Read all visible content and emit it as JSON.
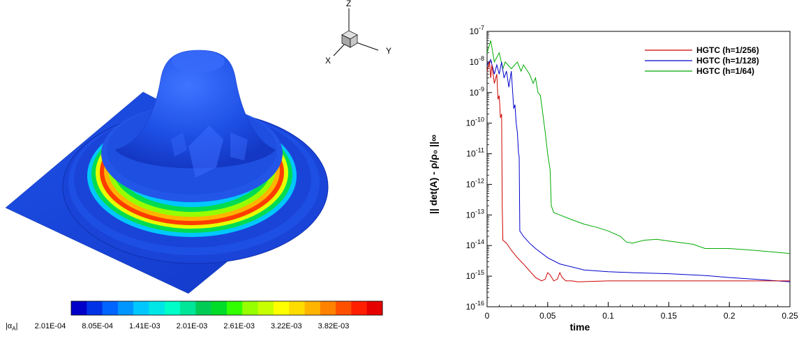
{
  "chart_data": [
    {
      "type": "surface",
      "colorbar": {
        "label_main": "|α",
        "label_sub": "A",
        "label_end": "|",
        "tick_labels": [
          "2.01E-04",
          "8.05E-04",
          "1.41E-03",
          "2.01E-03",
          "2.61E-03",
          "3.22E-03",
          "3.82E-03"
        ],
        "colors": [
          "#0000c8",
          "#0032e6",
          "#0064ff",
          "#0096ff",
          "#00c8ff",
          "#00e6e6",
          "#00ffc8",
          "#00e699",
          "#00cc55",
          "#00dc28",
          "#32ff00",
          "#96ff00",
          "#c8ff00",
          "#ffff00",
          "#ffdc00",
          "#ffb400",
          "#ff8200",
          "#ff5000",
          "#ff1e00",
          "#e60000"
        ]
      },
      "triad": {
        "z": "Z",
        "y": "Y",
        "x": "X"
      }
    },
    {
      "type": "line",
      "xlabel": "time",
      "ylabel": "|| det(A) - ρ/ρ₀ ||∞",
      "xlim": [
        0,
        0.25
      ],
      "ylim": [
        1e-16,
        1e-07
      ],
      "yscale": "log",
      "x_ticks": [
        "0",
        "0.05",
        "0.1",
        "0.15",
        "0.2",
        "0.25"
      ],
      "y_tick_exponents": [
        "-7",
        "-8",
        "-9",
        "-10",
        "-11",
        "-12",
        "-13",
        "-14",
        "-15",
        "-16"
      ],
      "y_tick_base": "10",
      "legend_position": "top-right",
      "series": [
        {
          "name": "HGTC (h=1/256)",
          "color": "#cc0000",
          "points": [
            [
              0.0,
              5e-09
            ],
            [
              0.002,
              1e-08
            ],
            [
              0.003,
              3e-09
            ],
            [
              0.004,
              8e-09
            ],
            [
              0.006,
              2e-09
            ],
            [
              0.008,
              4e-09
            ],
            [
              0.009,
              6e-10
            ],
            [
              0.01,
              8e-10
            ],
            [
              0.011,
              1.5e-10
            ],
            [
              0.012,
              2e-10
            ],
            [
              0.0125,
              2e-13
            ],
            [
              0.013,
              1.5e-14
            ],
            [
              0.016,
              1.2e-14
            ],
            [
              0.02,
              7e-15
            ],
            [
              0.025,
              4e-15
            ],
            [
              0.03,
              2.5e-15
            ],
            [
              0.035,
              1.5e-15
            ],
            [
              0.04,
              9e-16
            ],
            [
              0.045,
              7e-16
            ],
            [
              0.048,
              8e-16
            ],
            [
              0.05,
              1.3e-15
            ],
            [
              0.052,
              1.1e-15
            ],
            [
              0.055,
              7e-16
            ],
            [
              0.058,
              8e-16
            ],
            [
              0.06,
              1.3e-15
            ],
            [
              0.062,
              9e-16
            ],
            [
              0.065,
              7e-16
            ],
            [
              0.07,
              7e-16
            ],
            [
              0.075,
              6.5e-16
            ],
            [
              0.1,
              7e-16
            ],
            [
              0.15,
              7e-16
            ],
            [
              0.2,
              7e-16
            ],
            [
              0.25,
              7e-16
            ]
          ]
        },
        {
          "name": "HGTC (h=1/128)",
          "color": "#0000cc",
          "points": [
            [
              0.0,
              8e-09
            ],
            [
              0.003,
              1.2e-08
            ],
            [
              0.006,
              4e-09
            ],
            [
              0.008,
              8e-09
            ],
            [
              0.01,
              4e-09
            ],
            [
              0.012,
              1e-08
            ],
            [
              0.014,
              3e-09
            ],
            [
              0.016,
              5e-09
            ],
            [
              0.018,
              1.5e-09
            ],
            [
              0.02,
              5e-09
            ],
            [
              0.022,
              3e-10
            ],
            [
              0.023,
              4e-10
            ],
            [
              0.024,
              1e-10
            ],
            [
              0.025,
              5e-11
            ],
            [
              0.026,
              1e-11
            ],
            [
              0.0265,
              8e-12
            ],
            [
              0.027,
              3e-14
            ],
            [
              0.03,
              2e-14
            ],
            [
              0.035,
              1.2e-14
            ],
            [
              0.04,
              8e-15
            ],
            [
              0.05,
              4e-15
            ],
            [
              0.06,
              2.5e-15
            ],
            [
              0.07,
              2e-15
            ],
            [
              0.08,
              1.6e-15
            ],
            [
              0.1,
              1.4e-15
            ],
            [
              0.12,
              1.3e-15
            ],
            [
              0.15,
              1.2e-15
            ],
            [
              0.18,
              1.05e-15
            ],
            [
              0.2,
              9e-16
            ],
            [
              0.22,
              8e-16
            ],
            [
              0.25,
              6.5e-16
            ]
          ]
        },
        {
          "name": "HGTC (h=1/64)",
          "color": "#00aa00",
          "points": [
            [
              0.0,
              2e-08
            ],
            [
              0.003,
              5e-08
            ],
            [
              0.006,
              1e-08
            ],
            [
              0.01,
              2e-08
            ],
            [
              0.013,
              6e-09
            ],
            [
              0.015,
              1e-08
            ],
            [
              0.02,
              6e-09
            ],
            [
              0.025,
              1e-08
            ],
            [
              0.028,
              5e-09
            ],
            [
              0.03,
              8e-09
            ],
            [
              0.035,
              4e-09
            ],
            [
              0.038,
              2e-09
            ],
            [
              0.04,
              3e-09
            ],
            [
              0.042,
              1e-09
            ],
            [
              0.044,
              8e-10
            ],
            [
              0.046,
              2e-10
            ],
            [
              0.048,
              5e-11
            ],
            [
              0.05,
              1e-11
            ],
            [
              0.052,
              3e-12
            ],
            [
              0.053,
              2e-13
            ],
            [
              0.055,
              1.2e-13
            ],
            [
              0.06,
              1e-13
            ],
            [
              0.07,
              7e-14
            ],
            [
              0.08,
              5e-14
            ],
            [
              0.09,
              4e-14
            ],
            [
              0.1,
              3e-14
            ],
            [
              0.11,
              2e-14
            ],
            [
              0.115,
              1.3e-14
            ],
            [
              0.12,
              1.2e-14
            ],
            [
              0.13,
              1.5e-14
            ],
            [
              0.14,
              1.6e-14
            ],
            [
              0.15,
              1.4e-14
            ],
            [
              0.17,
              1.1e-14
            ],
            [
              0.18,
              8e-15
            ],
            [
              0.2,
              8e-15
            ],
            [
              0.22,
              7e-15
            ],
            [
              0.25,
              5.5e-15
            ]
          ]
        }
      ]
    }
  ]
}
